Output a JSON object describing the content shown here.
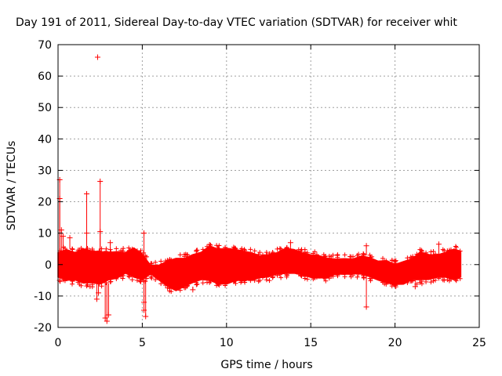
{
  "chart_data": {
    "type": "scatter",
    "title": "Day 191 of 2011, Sidereal Day-to-day VTEC variation (SDTVAR) for receiver whit",
    "xlabel": "GPS time / hours",
    "ylabel": "SDTVAR / TECUs",
    "xlim": [
      0,
      25
    ],
    "ylim": [
      -20,
      70
    ],
    "xticks": [
      0,
      5,
      10,
      15,
      20,
      25
    ],
    "yticks": [
      -20,
      -10,
      0,
      10,
      20,
      30,
      40,
      50,
      60,
      70
    ],
    "grid": true,
    "marker": "+",
    "color": "#ff0000",
    "band": [
      [
        0.0,
        -4,
        4
      ],
      [
        0.5,
        -5,
        5
      ],
      [
        1.0,
        -5,
        4
      ],
      [
        1.5,
        -6,
        5
      ],
      [
        2.0,
        -6,
        4
      ],
      [
        2.5,
        -6,
        4
      ],
      [
        3.0,
        -5,
        4
      ],
      [
        3.5,
        -4,
        4
      ],
      [
        4.0,
        -3,
        4
      ],
      [
        4.5,
        -4,
        5
      ],
      [
        5.0,
        -5,
        3
      ],
      [
        5.5,
        -3,
        0
      ],
      [
        6.0,
        -5,
        0
      ],
      [
        6.5,
        -7,
        1
      ],
      [
        7.0,
        -8,
        2
      ],
      [
        7.5,
        -7,
        2
      ],
      [
        8.0,
        -6,
        3
      ],
      [
        8.5,
        -5,
        4
      ],
      [
        9.0,
        -5,
        6
      ],
      [
        9.5,
        -6,
        5
      ],
      [
        10.0,
        -6,
        5
      ],
      [
        10.5,
        -5,
        5
      ],
      [
        11.0,
        -5,
        4
      ],
      [
        11.5,
        -5,
        4
      ],
      [
        12.0,
        -4,
        3
      ],
      [
        12.5,
        -4,
        3
      ],
      [
        13.0,
        -3,
        4
      ],
      [
        13.5,
        -3,
        5
      ],
      [
        14.0,
        -3,
        5
      ],
      [
        14.5,
        -3,
        4
      ],
      [
        15.0,
        -4,
        3
      ],
      [
        15.5,
        -4,
        3
      ],
      [
        16.0,
        -4,
        2
      ],
      [
        16.5,
        -3,
        2
      ],
      [
        17.0,
        -3,
        2
      ],
      [
        17.5,
        -3,
        2
      ],
      [
        18.0,
        -3,
        3
      ],
      [
        18.5,
        -4,
        2
      ],
      [
        19.0,
        -5,
        1
      ],
      [
        19.5,
        -6,
        1
      ],
      [
        20.0,
        -6,
        0
      ],
      [
        20.5,
        -6,
        1
      ],
      [
        21.0,
        -5,
        2
      ],
      [
        21.5,
        -5,
        4
      ],
      [
        22.0,
        -5,
        3
      ],
      [
        22.5,
        -4,
        3
      ],
      [
        23.0,
        -4,
        4
      ],
      [
        23.5,
        -5,
        5
      ],
      [
        23.9,
        -4,
        4
      ]
    ],
    "spikes": [
      [
        0.1,
        27
      ],
      [
        0.1,
        21
      ],
      [
        0.2,
        11
      ],
      [
        0.3,
        9
      ],
      [
        0.7,
        8.5
      ],
      [
        0.1,
        -5
      ],
      [
        1.7,
        22.5
      ],
      [
        1.7,
        10
      ],
      [
        2.3,
        -11
      ],
      [
        2.5,
        26.5
      ],
      [
        2.5,
        10.5
      ],
      [
        2.4,
        -9
      ],
      [
        2.8,
        -17
      ],
      [
        2.9,
        -18
      ],
      [
        3.0,
        -16
      ],
      [
        3.1,
        7
      ],
      [
        5.1,
        10
      ],
      [
        5.1,
        -12
      ],
      [
        5.1,
        -14.5
      ],
      [
        5.2,
        -16.5
      ],
      [
        8.0,
        -8
      ],
      [
        13.8,
        7
      ],
      [
        18.3,
        6
      ],
      [
        18.3,
        -13.5
      ],
      [
        21.2,
        -7
      ],
      [
        22.6,
        6.5
      ]
    ],
    "outliers": [
      [
        2.35,
        66
      ]
    ]
  }
}
